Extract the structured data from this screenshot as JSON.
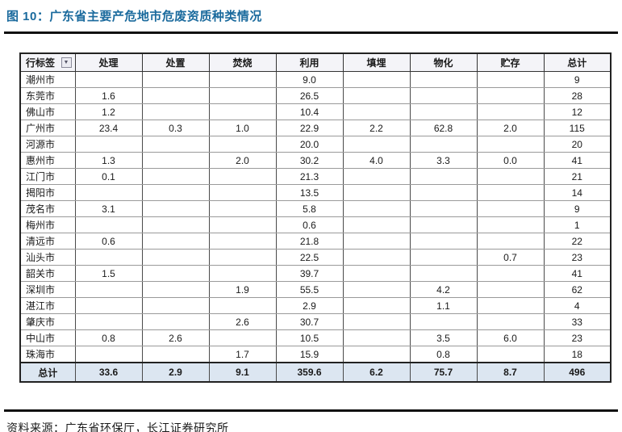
{
  "figure": {
    "title": "图 10：广东省主要产危地市危废资质种类情况",
    "source": "资料来源：广东省环保厅，长江证券研究所"
  },
  "colors": {
    "title_blue": "#1a6a9d",
    "rule_black": "#111111",
    "total_row_bg": "#dce6f1",
    "header_bg": "#f4f4f8"
  },
  "table": {
    "row_label_header": "行标签",
    "filter_icon": "▼",
    "columns": [
      "处理",
      "处置",
      "焚烧",
      "利用",
      "填埋",
      "物化",
      "贮存",
      "总计"
    ],
    "rows": [
      {
        "label": "潮州市",
        "values": [
          "",
          "",
          "",
          "9.0",
          "",
          "",
          "",
          "9"
        ]
      },
      {
        "label": "东莞市",
        "values": [
          "1.6",
          "",
          "",
          "26.5",
          "",
          "",
          "",
          "28"
        ]
      },
      {
        "label": "佛山市",
        "values": [
          "1.2",
          "",
          "",
          "10.4",
          "",
          "",
          "",
          "12"
        ]
      },
      {
        "label": "广州市",
        "values": [
          "23.4",
          "0.3",
          "1.0",
          "22.9",
          "2.2",
          "62.8",
          "2.0",
          "115"
        ]
      },
      {
        "label": "河源市",
        "values": [
          "",
          "",
          "",
          "20.0",
          "",
          "",
          "",
          "20"
        ]
      },
      {
        "label": "惠州市",
        "values": [
          "1.3",
          "",
          "2.0",
          "30.2",
          "4.0",
          "3.3",
          "0.0",
          "41"
        ]
      },
      {
        "label": "江门市",
        "values": [
          "0.1",
          "",
          "",
          "21.3",
          "",
          "",
          "",
          "21"
        ]
      },
      {
        "label": "揭阳市",
        "values": [
          "",
          "",
          "",
          "13.5",
          "",
          "",
          "",
          "14"
        ]
      },
      {
        "label": "茂名市",
        "values": [
          "3.1",
          "",
          "",
          "5.8",
          "",
          "",
          "",
          "9"
        ]
      },
      {
        "label": "梅州市",
        "values": [
          "",
          "",
          "",
          "0.6",
          "",
          "",
          "",
          "1"
        ]
      },
      {
        "label": "清远市",
        "values": [
          "0.6",
          "",
          "",
          "21.8",
          "",
          "",
          "",
          "22"
        ]
      },
      {
        "label": "汕头市",
        "values": [
          "",
          "",
          "",
          "22.5",
          "",
          "",
          "0.7",
          "23"
        ]
      },
      {
        "label": "韶关市",
        "values": [
          "1.5",
          "",
          "",
          "39.7",
          "",
          "",
          "",
          "41"
        ]
      },
      {
        "label": "深圳市",
        "values": [
          "",
          "",
          "1.9",
          "55.5",
          "",
          "4.2",
          "",
          "62"
        ]
      },
      {
        "label": "湛江市",
        "values": [
          "",
          "",
          "",
          "2.9",
          "",
          "1.1",
          "",
          "4"
        ]
      },
      {
        "label": "肇庆市",
        "values": [
          "",
          "",
          "2.6",
          "30.7",
          "",
          "",
          "",
          "33"
        ]
      },
      {
        "label": "中山市",
        "values": [
          "0.8",
          "2.6",
          "",
          "10.5",
          "",
          "3.5",
          "6.0",
          "23"
        ]
      },
      {
        "label": "珠海市",
        "values": [
          "",
          "",
          "1.7",
          "15.9",
          "",
          "0.8",
          "",
          "18"
        ]
      },
      {
        "label": "总计",
        "values": [
          "33.6",
          "2.9",
          "9.1",
          "359.6",
          "6.2",
          "75.7",
          "8.7",
          "496"
        ],
        "is_total": true
      }
    ]
  }
}
